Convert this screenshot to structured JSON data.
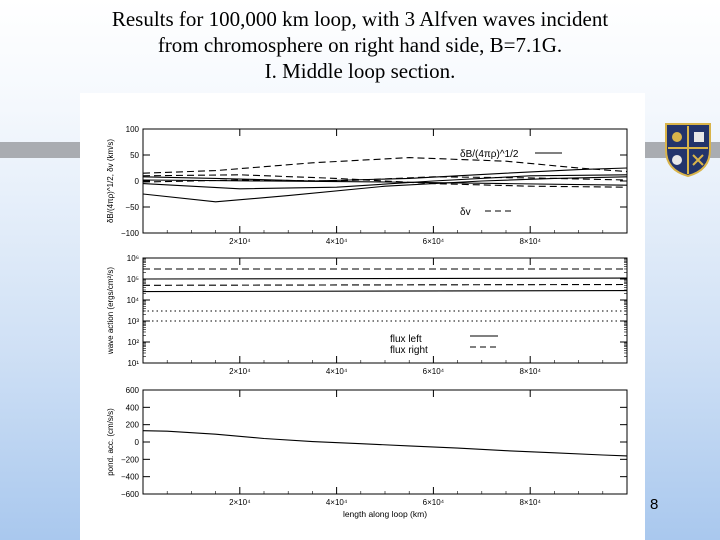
{
  "slide": {
    "title_lines": [
      "Results for 100,000 km loop, with 3 Alfven waves incident",
      "from chromosphere on right hand side, B=7.1G.",
      "I. Middle loop section."
    ],
    "page_number": "8"
  },
  "chart_data": [
    {
      "type": "line",
      "panel": "top",
      "ylabel": "δB/(4πρ)^1/2, δv (km/s)",
      "ylim": [
        -100,
        100
      ],
      "yticks": [
        "100",
        "50",
        "0",
        "−50",
        "−100"
      ],
      "xlim": [
        0,
        100000
      ],
      "xticks": [
        "2×10⁴",
        "4×10⁴",
        "6×10⁴",
        "8×10⁴"
      ],
      "legend": [
        "δB/(4πρ)^1/2",
        "δv"
      ],
      "series": [
        {
          "style": "dashed",
          "x": [
            0,
            15000,
            35000,
            55000,
            75000,
            90000,
            100000
          ],
          "y": [
            15,
            20,
            35,
            45,
            38,
            25,
            18
          ]
        },
        {
          "style": "solid",
          "x": [
            0,
            15000,
            35000,
            55000,
            75000,
            90000,
            100000
          ],
          "y": [
            8,
            5,
            0,
            5,
            15,
            22,
            25
          ]
        },
        {
          "style": "solid",
          "x": [
            0,
            20000,
            40000,
            60000,
            80000,
            100000
          ],
          "y": [
            -5,
            -15,
            -12,
            0,
            10,
            12
          ]
        },
        {
          "style": "dashed",
          "x": [
            0,
            20000,
            40000,
            60000,
            80000,
            100000
          ],
          "y": [
            10,
            12,
            5,
            -5,
            -10,
            -12
          ]
        },
        {
          "style": "solid",
          "x": [
            0,
            15000,
            30000,
            50000,
            70000,
            85000,
            100000
          ],
          "y": [
            -25,
            -40,
            -28,
            -10,
            0,
            5,
            8
          ]
        },
        {
          "style": "dashed",
          "x": [
            0,
            20000,
            40000,
            60000,
            80000,
            100000
          ],
          "y": [
            -2,
            2,
            0,
            8,
            6,
            2
          ]
        },
        {
          "style": "solid",
          "x": [
            0,
            25000,
            50000,
            75000,
            100000
          ],
          "y": [
            2,
            0,
            -2,
            -5,
            -8
          ]
        }
      ]
    },
    {
      "type": "line",
      "panel": "middle",
      "ylabel": "wave action (ergs/cm²/s)",
      "scale": "log",
      "ylim": [
        10,
        1000000
      ],
      "yticks": [
        "10⁶",
        "10⁵",
        "10⁴",
        "10³",
        "10²",
        "10¹"
      ],
      "xlim": [
        0,
        100000
      ],
      "xticks": [
        "2×10⁴",
        "4×10⁴",
        "6×10⁴",
        "8×10⁴"
      ],
      "legend": [
        "flux left",
        "flux right"
      ],
      "series": [
        {
          "style": "dashed",
          "x": [
            0,
            100000
          ],
          "y": [
            300000,
            300000
          ]
        },
        {
          "style": "solid",
          "x": [
            0,
            100000
          ],
          "y": [
            100000,
            110000
          ]
        },
        {
          "style": "dashed",
          "x": [
            0,
            100000
          ],
          "y": [
            50000,
            55000
          ]
        },
        {
          "style": "solid",
          "x": [
            0,
            100000
          ],
          "y": [
            25000,
            28000
          ]
        },
        {
          "style": "dotted",
          "x": [
            0,
            100000
          ],
          "y": [
            3000,
            3000
          ]
        },
        {
          "style": "dotted",
          "x": [
            0,
            100000
          ],
          "y": [
            1000,
            1000
          ]
        }
      ]
    },
    {
      "type": "line",
      "panel": "bottom",
      "xlabel": "length along loop (km)",
      "ylabel": "pond. acc. (cm/s/s)",
      "ylim": [
        -600,
        600
      ],
      "yticks": [
        "600",
        "400",
        "200",
        "0",
        "−200",
        "−400",
        "−600"
      ],
      "xlim": [
        0,
        100000
      ],
      "xticks": [
        "2×10⁴",
        "4×10⁴",
        "6×10⁴",
        "8×10⁴"
      ],
      "series": [
        {
          "style": "solid",
          "x": [
            0,
            5000,
            15000,
            25000,
            35000,
            45000,
            55000,
            65000,
            75000,
            85000,
            95000,
            100000
          ],
          "y": [
            130,
            125,
            90,
            40,
            5,
            -20,
            -45,
            -70,
            -100,
            -125,
            -150,
            -160
          ]
        }
      ]
    }
  ]
}
